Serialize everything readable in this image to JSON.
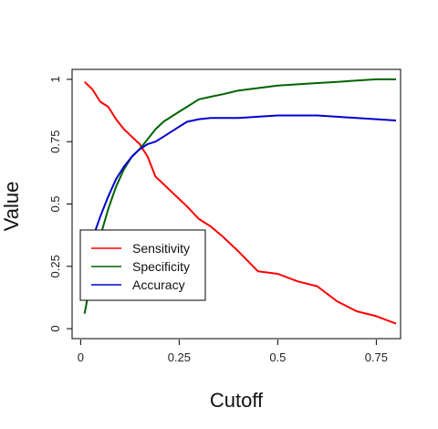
{
  "chart_data": {
    "type": "line",
    "xlabel": "Cutoff",
    "ylabel": "Value",
    "xlim": [
      0,
      0.8
    ],
    "ylim": [
      0,
      1
    ],
    "x_ticks": [
      {
        "value": 0,
        "label": "0"
      },
      {
        "value": 0.25,
        "label": "0.25"
      },
      {
        "value": 0.5,
        "label": "0.5"
      },
      {
        "value": 0.75,
        "label": "0.75"
      }
    ],
    "y_ticks": [
      {
        "value": 0,
        "label": "0"
      },
      {
        "value": 0.25,
        "label": "0.25"
      },
      {
        "value": 0.5,
        "label": "0.5"
      },
      {
        "value": 0.75,
        "label": "0.75"
      },
      {
        "value": 1,
        "label": "1"
      }
    ],
    "grid": false,
    "legend_position": "bottom-left",
    "x": [
      0.01,
      0.03,
      0.05,
      0.07,
      0.09,
      0.11,
      0.13,
      0.15,
      0.17,
      0.19,
      0.21,
      0.23,
      0.25,
      0.27,
      0.3,
      0.33,
      0.36,
      0.4,
      0.45,
      0.5,
      0.55,
      0.6,
      0.65,
      0.7,
      0.75,
      0.8
    ],
    "series": [
      {
        "name": "Sensitivity",
        "color": "#ff0000",
        "values": [
          0.99,
          0.96,
          0.91,
          0.89,
          0.84,
          0.8,
          0.77,
          0.74,
          0.69,
          0.61,
          0.58,
          0.55,
          0.52,
          0.49,
          0.44,
          0.41,
          0.37,
          0.31,
          0.23,
          0.22,
          0.19,
          0.17,
          0.11,
          0.07,
          0.05,
          0.02
        ]
      },
      {
        "name": "Specificity",
        "color": "#006400",
        "values": [
          0.06,
          0.23,
          0.37,
          0.48,
          0.57,
          0.64,
          0.69,
          0.72,
          0.76,
          0.8,
          0.83,
          0.85,
          0.87,
          0.89,
          0.92,
          0.93,
          0.94,
          0.955,
          0.965,
          0.975,
          0.98,
          0.985,
          0.99,
          0.995,
          1.0,
          1.0
        ]
      },
      {
        "name": "Accuracy",
        "color": "#0000cd",
        "values": [
          0.13,
          0.36,
          0.45,
          0.53,
          0.6,
          0.65,
          0.69,
          0.72,
          0.74,
          0.75,
          0.77,
          0.79,
          0.81,
          0.83,
          0.84,
          0.845,
          0.845,
          0.845,
          0.85,
          0.855,
          0.855,
          0.855,
          0.85,
          0.845,
          0.84,
          0.835
        ]
      }
    ]
  }
}
